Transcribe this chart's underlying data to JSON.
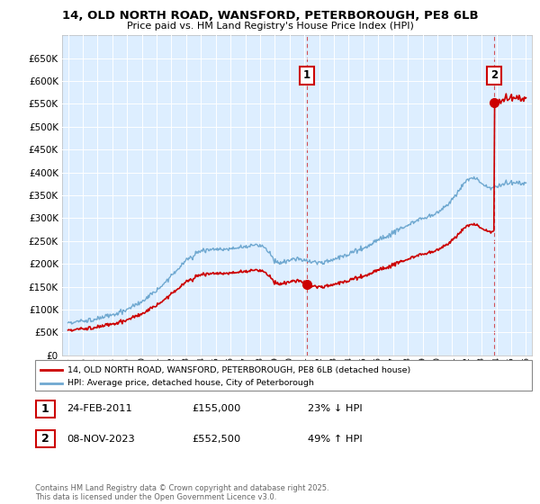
{
  "title": "14, OLD NORTH ROAD, WANSFORD, PETERBOROUGH, PE8 6LB",
  "subtitle": "Price paid vs. HM Land Registry's House Price Index (HPI)",
  "legend_line1": "14, OLD NORTH ROAD, WANSFORD, PETERBOROUGH, PE8 6LB (detached house)",
  "legend_line2": "HPI: Average price, detached house, City of Peterborough",
  "annotation1_date": "24-FEB-2011",
  "annotation1_price": "£155,000",
  "annotation1_hpi": "23% ↓ HPI",
  "annotation2_date": "08-NOV-2023",
  "annotation2_price": "£552,500",
  "annotation2_hpi": "49% ↑ HPI",
  "footnote": "Contains HM Land Registry data © Crown copyright and database right 2025.\nThis data is licensed under the Open Government Licence v3.0.",
  "red_color": "#cc0000",
  "blue_color": "#6fa8d0",
  "bg_color": "#ddeeff",
  "ylim_max": 700000,
  "ytick_values": [
    0,
    50000,
    100000,
    150000,
    200000,
    250000,
    300000,
    350000,
    400000,
    450000,
    500000,
    550000,
    600000,
    650000
  ],
  "sale1_year": 2011.15,
  "sale1_price": 155000,
  "sale2_year": 2023.86,
  "sale2_price": 552500
}
